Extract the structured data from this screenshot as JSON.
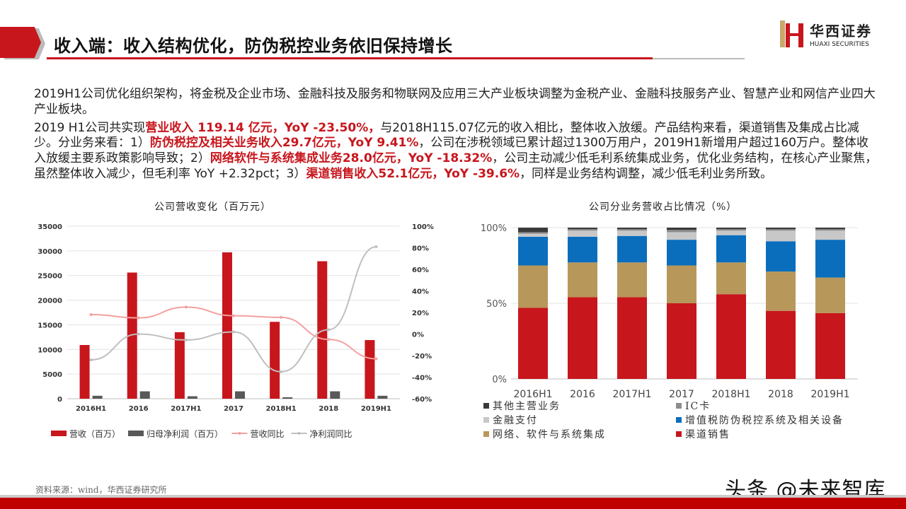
{
  "header": {
    "title": "收入端：收入结构优化，防伪税控业务依旧保持增长",
    "logo_cn": "华西证券",
    "logo_en": "HUAXI SECURITIES",
    "accent": "#c8161d"
  },
  "body": {
    "paragraphs": [
      [
        {
          "t": "2019H1公司优化组织架构，将金税及企业市场、金融科技及服务和物联网及应用三大产业板块调整为金税产业、金融科技服务产业、智慧产业和网信产业四大产业板块。",
          "hl": false
        }
      ],
      [
        {
          "t": "2019 H1公司共实现",
          "hl": false
        },
        {
          "t": "营业收入 119.14 亿元，YoY -23.50%，",
          "hl": true
        },
        {
          "t": "与2018H115.07亿元的收入相比，整体收入放缓。产品结构来看，渠道销售及集成占比减少。分业务来看：1）",
          "hl": false
        },
        {
          "t": "防伪税控及相关业务收入29.7亿元，YoY 9.41%",
          "hl": true
        },
        {
          "t": "，公司在涉税领域已累计超过1300万用户，2019H1新增用户超过160万户。整体收入放缓主要系政策影响导致；2）",
          "hl": false
        },
        {
          "t": "网络软件与系统集成业务28.0亿元，YoY -18.32%",
          "hl": true
        },
        {
          "t": "，公司主动减少低毛利系统集成业务，优化业务结构，在核心产业聚焦，虽然整体收入减少，但毛利率 YoY +2.32pct；3）",
          "hl": false
        },
        {
          "t": "渠道销售收入52.1亿元，YoY -39.6%",
          "hl": true
        },
        {
          "t": "，同样是业务结构调整，减少低毛利业务所致。",
          "hl": false
        }
      ]
    ]
  },
  "chart_data": [
    {
      "type": "bar",
      "title": "公司营收变化（百万元）",
      "categories": [
        "2016H1",
        "2016",
        "2017H1",
        "2017",
        "2018H1",
        "2018",
        "2019H1"
      ],
      "ylim": [
        0,
        35000
      ],
      "yticks": [
        "0",
        "5000",
        "10000",
        "15000",
        "20000",
        "25000",
        "30000",
        "35000"
      ],
      "y2lim": [
        -60,
        100
      ],
      "y2ticks": [
        "-60%",
        "-40%",
        "-20%",
        "0%",
        "20%",
        "40%",
        "60%",
        "80%",
        "100%"
      ],
      "grid": true,
      "legend": "bottom",
      "series": [
        {
          "name": "营收（百万）",
          "type": "bar",
          "axis": "left",
          "color": "#c8161d",
          "values": [
            10900,
            25600,
            13500,
            29700,
            15600,
            27900,
            11900
          ]
        },
        {
          "name": "归母净利润（百万）",
          "type": "bar",
          "axis": "left",
          "color": "#595959",
          "values": [
            600,
            1500,
            500,
            1500,
            300,
            1500,
            600
          ]
        },
        {
          "name": "营收同比",
          "type": "line",
          "axis": "right",
          "unit": "%",
          "color": "#f4a0a0",
          "values": [
            18,
            15,
            25,
            17,
            15.5,
            -5,
            -23
          ]
        },
        {
          "name": "净利润同比",
          "type": "line",
          "axis": "right",
          "unit": "%",
          "color": "#bfbfbf",
          "values": [
            -24,
            0,
            -5.5,
            2,
            -35,
            4,
            81
          ]
        }
      ]
    },
    {
      "type": "bar",
      "stacked": true,
      "title": "公司分业务营收占比情况（%）",
      "categories": [
        "2016H1",
        "2016",
        "2017H1",
        "2017",
        "2018H1",
        "2018",
        "2019H1"
      ],
      "ylim": [
        0,
        100
      ],
      "yticks": [
        "0%",
        "50%",
        "100%"
      ],
      "grid": true,
      "legend": "bottom",
      "series": [
        {
          "name": "渠道销售",
          "color": "#c8161d",
          "values": [
            47,
            54,
            54,
            50,
            56,
            45,
            43.5
          ]
        },
        {
          "name": "网络、软件与系统集成",
          "color": "#b8975a",
          "values": [
            28,
            23,
            23,
            25,
            21,
            26,
            23.5
          ]
        },
        {
          "name": "增值税防伪税控系统及相关设备",
          "color": "#0a6ebd",
          "values": [
            19,
            17,
            17.5,
            17,
            18,
            20,
            25
          ]
        },
        {
          "name": "金融支付",
          "color": "#c8c8c8",
          "values": [
            2,
            4,
            3.5,
            5,
            3,
            7,
            6
          ]
        },
        {
          "name": "IC卡",
          "color": "#8c8c8c",
          "values": [
            1,
            1,
            1,
            1.5,
            1,
            1,
            1
          ]
        },
        {
          "name": "其他主营业务",
          "color": "#3a3a3a",
          "values": [
            3,
            1,
            1,
            1.5,
            1,
            1,
            1
          ]
        }
      ],
      "legend_order": [
        "其他主营业务",
        "IC卡",
        "金融支付",
        "增值税防伪税控系统及相关设备",
        "网络、软件与系统集成",
        "渠道销售"
      ]
    }
  ],
  "footer": {
    "source": "资料来源：wind，华西证券研究所",
    "watermark": "头条 @未来智库"
  }
}
